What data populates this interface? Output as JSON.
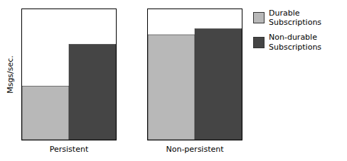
{
  "chart_data": {
    "type": "bar",
    "ylabel": "Msgs/sec.",
    "categories": [
      "Persistent",
      "Non-persistent"
    ],
    "series": [
      {
        "name": "Durable\nSubscriptions",
        "color": "#b8b8b8",
        "values": [
          45,
          88
        ]
      },
      {
        "name": "Non-durable\nSubscriptions",
        "color": "#454545",
        "values": [
          80,
          93
        ]
      }
    ],
    "ylim": [
      0,
      110
    ],
    "yticks": [],
    "grid": false,
    "tick_labels": "x",
    "legend": "right"
  }
}
